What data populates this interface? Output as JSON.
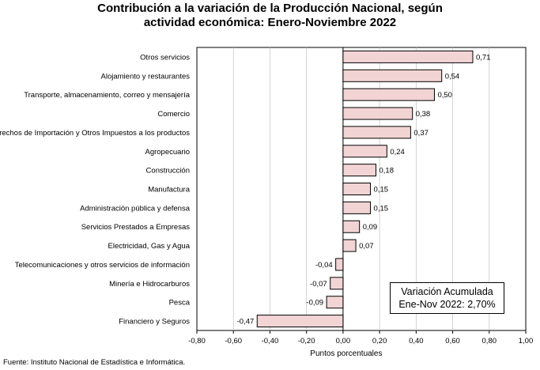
{
  "title_line1": "Contribución a la variación de la Producción Nacional, según",
  "title_line2": "actividad económica: Enero-Noviembre 2022",
  "annotation": {
    "line1": "Variación Acumulada",
    "line2": "Ene-Nov 2022: 2,70%"
  },
  "source": "Fuente: Instituto Nacional de Estadística e Informática.",
  "colors": {
    "bar_fill": "#f2d4d4",
    "bar_stroke": "#000000",
    "grid": "#c0c0c0"
  },
  "chart_data": {
    "type": "bar",
    "orientation": "horizontal",
    "title": "Contribución a la variación de la Producción Nacional, según actividad económica: Enero-Noviembre 2022",
    "xlabel": "Puntos porcentuales",
    "ylabel": "",
    "xlim": [
      -0.8,
      1.0
    ],
    "xticks": [
      "-0,80",
      "-0,60",
      "-0,40",
      "-0,20",
      "0,00",
      "0,20",
      "0,40",
      "0,60",
      "0,80",
      "1,00"
    ],
    "grid": true,
    "categories": [
      "Otros servicios",
      "Alojamiento y restaurantes",
      "Transporte, almacenamiento, correo y mensajería",
      "Comercio",
      "Derechos de Importación y Otros Impuestos a los productos",
      "Agropecuario",
      "Construcción",
      "Manufactura",
      "Administración pública y defensa",
      "Servicios Prestados a Empresas",
      "Electricidad, Gas y Agua",
      "Telecomunicaciones y otros servicios de información",
      "Minería e Hidrocarburos",
      "Pesca",
      "Financiero y Seguros"
    ],
    "values": [
      0.71,
      0.54,
      0.5,
      0.38,
      0.37,
      0.24,
      0.18,
      0.15,
      0.15,
      0.09,
      0.07,
      -0.04,
      -0.07,
      -0.09,
      -0.47
    ],
    "value_labels": [
      "0,71",
      "0,54",
      "0,50",
      "0,38",
      "0,37",
      "0,24",
      "0,18",
      "0,15",
      "0,15",
      "0,09",
      "0,07",
      "-0,04",
      "-0,07",
      "-0,09",
      "-0,47"
    ]
  }
}
